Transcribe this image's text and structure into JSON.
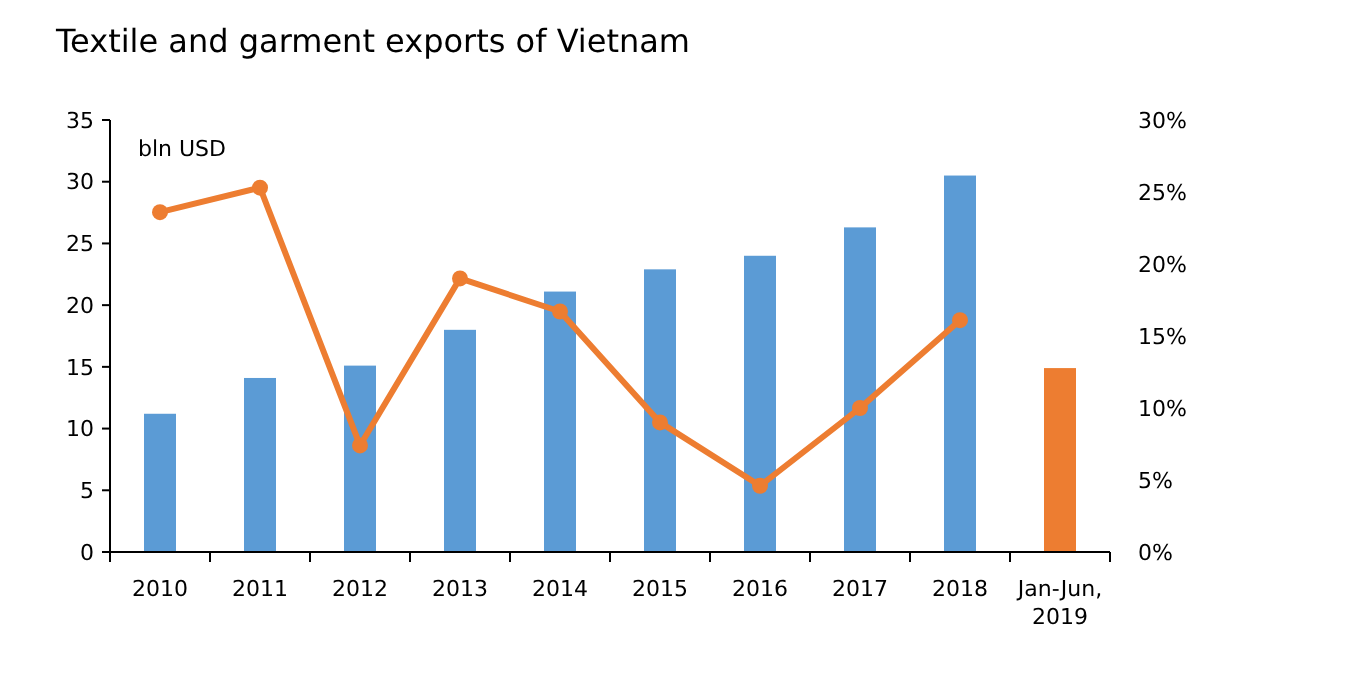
{
  "chart_data": {
    "type": "bar",
    "title": "Textile and garment exports of Vietnam",
    "ylabel": "bln USD",
    "categories": [
      "2010",
      "2011",
      "2012",
      "2013",
      "2014",
      "2015",
      "2016",
      "2017",
      "2018",
      "Jan-Jun, 2019"
    ],
    "series": [
      {
        "colors": [
          "#5b9bd5",
          "#5b9bd5",
          "#5b9bd5",
          "#5b9bd5",
          "#5b9bd5",
          "#5b9bd5",
          "#5b9bd5",
          "#5b9bd5",
          "#5b9bd5",
          "#ed7d31"
        ],
        "values": [
          11.2,
          14.1,
          15.1,
          18.0,
          21.1,
          22.9,
          24.0,
          26.3,
          30.5,
          14.9
        ]
      },
      {
        "type": "line",
        "axis": "y2",
        "color": "#ed7d31",
        "marker": "circle",
        "values": [
          23.6,
          25.3,
          7.4,
          19.0,
          16.7,
          9.0,
          4.6,
          10.0,
          16.1,
          null
        ]
      }
    ],
    "ylim": [
      0,
      35
    ],
    "yticks": [
      0,
      5,
      10,
      15,
      20,
      25,
      30,
      35
    ],
    "y2lim": [
      0,
      30
    ],
    "y2ticks": [
      {
        "value": 0,
        "label": "0%"
      },
      {
        "value": 5,
        "label": "5%"
      },
      {
        "value": 10,
        "label": "10%"
      },
      {
        "value": 15,
        "label": "15%"
      },
      {
        "value": 20,
        "label": "20%"
      },
      {
        "value": 25,
        "label": "25%"
      },
      {
        "value": 30,
        "label": "30%"
      }
    ],
    "grid": false
  }
}
